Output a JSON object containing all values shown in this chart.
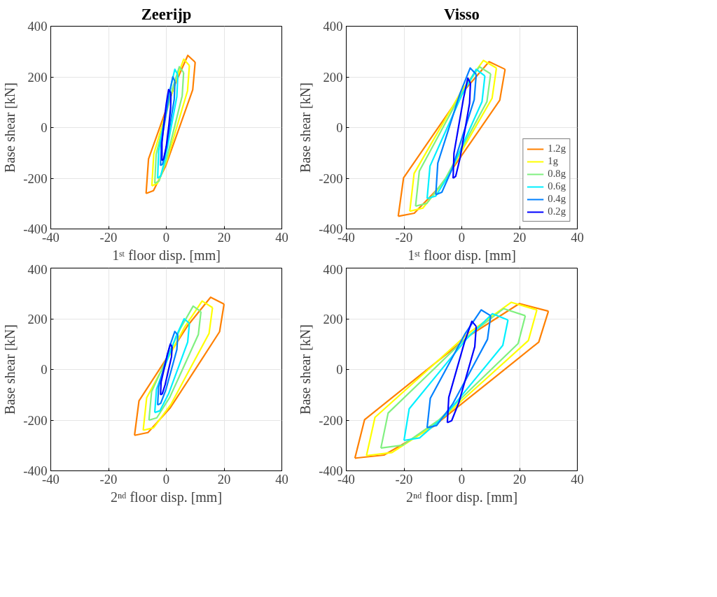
{
  "chart_data": [
    {
      "type": "line",
      "title": "Zeerijp",
      "xlabel": "1ˢᵗ floor disp. [mm]",
      "ylabel": "Base shear [kN]",
      "xlim": [
        -40,
        40
      ],
      "ylim": [
        -400,
        400
      ],
      "xticks": [
        -40,
        -20,
        0,
        20,
        40
      ],
      "yticks": [
        -400,
        -200,
        0,
        200,
        400
      ],
      "grid": true,
      "series": [
        {
          "color": "#ff8000",
          "x": [
            -7,
            -6.15,
            -1.9,
            3.2,
            7.45,
            10
          ],
          "values": [
            -260,
            -124,
            12,
            176,
            285,
            258
          ]
        },
        {
          "color": "#ff8000",
          "x": [
            10,
            9.15,
            4.9,
            -0.2,
            -4.45,
            -7
          ],
          "values": [
            258,
            149,
            12,
            -151,
            -249,
            -260
          ]
        },
        {
          "color": "#ffff00",
          "x": [
            -5,
            -4.35,
            -1.1,
            2.8,
            6.05,
            8
          ],
          "values": [
            -230,
            -105,
            20,
            170,
            270,
            245
          ]
        },
        {
          "color": "#ffff00",
          "x": [
            8,
            7.35,
            4.1,
            0.2,
            -3.05,
            -5
          ],
          "values": [
            245,
            145,
            20,
            -130,
            -220,
            -230
          ]
        },
        {
          "color": "#80f080",
          "x": [
            -4,
            -3.5,
            -1,
            2,
            4.5,
            6
          ],
          "values": [
            -220,
            -105,
            10,
            148,
            240,
            217
          ]
        },
        {
          "color": "#80f080",
          "x": [
            6,
            5.5,
            3,
            0,
            -2.5,
            -4
          ],
          "values": [
            217,
            125,
            10,
            -128,
            -211,
            -220
          ]
        },
        {
          "color": "#00f0ff",
          "x": [
            -3,
            -2.65,
            -0.9,
            1.2,
            2.95,
            4
          ],
          "values": [
            -200,
            -92,
            15,
            144,
            230,
            208
          ]
        },
        {
          "color": "#00f0ff",
          "x": [
            4,
            3.65,
            1.9,
            -0.2,
            -1.95,
            -3
          ],
          "values": [
            208,
            122,
            15,
            -114,
            -191,
            -200
          ]
        },
        {
          "color": "#0080ff",
          "x": [
            -2,
            -1.75,
            -0.5,
            1,
            2.25,
            3
          ],
          "values": [
            -150,
            -62,
            25,
            130,
            200,
            182
          ]
        },
        {
          "color": "#0080ff",
          "x": [
            3,
            2.75,
            1.5,
            0,
            -1.25,
            -2
          ],
          "values": [
            182,
            112,
            25,
            -80,
            -143,
            -150
          ]
        },
        {
          "color": "#0000ff",
          "x": [
            -1.5,
            -1.5,
            -0.9,
            0,
            0.8,
            1.6
          ],
          "values": [
            -130,
            -60,
            10,
            94,
            150,
            136
          ]
        },
        {
          "color": "#0000ff",
          "x": [
            1.6,
            1.5,
            0.9,
            0,
            -0.9,
            -1.5
          ],
          "values": [
            136,
            80,
            10,
            -74,
            -124,
            -130
          ]
        }
      ]
    },
    {
      "type": "line",
      "title": "Visso",
      "xlabel": "1ˢᵗ floor disp. [mm]",
      "ylabel": "Base shear [kN]",
      "xlim": [
        -40,
        40
      ],
      "ylim": [
        -400,
        400
      ],
      "xticks": [
        -40,
        -20,
        0,
        20,
        40
      ],
      "yticks": [
        -400,
        -200,
        0,
        200,
        400
      ],
      "grid": true,
      "legend": "bottom right",
      "series": [
        {
          "name": "1.2g",
          "color": "#ff8000",
          "x": [
            -22,
            -20.15,
            -10.9,
            0.2,
            9.45,
            15
          ],
          "values": [
            -350,
            -198,
            -45,
            138,
            260,
            230
          ]
        },
        {
          "color": "#ff8000",
          "x": [
            15,
            13.15,
            3.9,
            -7.2,
            -16.45,
            -22
          ],
          "values": [
            230,
            108,
            -45,
            -228,
            -338,
            -350
          ]
        },
        {
          "name": "1g",
          "color": "#ffff00",
          "x": [
            -18,
            -16.5,
            -9,
            0,
            7.5,
            12
          ],
          "values": [
            -330,
            -181,
            -32,
            146,
            265,
            235
          ]
        },
        {
          "color": "#ffff00",
          "x": [
            12,
            10.5,
            3,
            -6,
            -13.5,
            -18
          ],
          "values": [
            235,
            116,
            -32,
            -211,
            -318,
            -330
          ]
        },
        {
          "name": "0.8g",
          "color": "#80f080",
          "x": [
            -16,
            -14.7,
            -8.2,
            -0.4,
            6.1,
            10
          ],
          "values": [
            -310,
            -172,
            -35,
            130,
            240,
            212
          ]
        },
        {
          "color": "#80f080",
          "x": [
            10,
            8.7,
            2.2,
            -5.6,
            -12.1,
            -16
          ],
          "values": [
            212,
            102,
            -35,
            -200,
            -299,
            -310
          ]
        },
        {
          "name": "0.6g",
          "color": "#00f0ff",
          "x": [
            -12,
            -11,
            -6,
            0,
            5,
            8
          ],
          "values": [
            -280,
            -152,
            -25,
            128,
            230,
            204
          ]
        },
        {
          "color": "#00f0ff",
          "x": [
            8,
            7,
            2,
            -4,
            -9,
            -12
          ],
          "values": [
            204,
            102,
            -25,
            -178,
            -270,
            -280
          ]
        },
        {
          "name": "0.4g",
          "color": "#0080ff",
          "x": [
            -9,
            -8.3,
            -4.8,
            -0.6,
            2.9,
            5
          ],
          "values": [
            -265,
            -140,
            -15,
            135,
            235,
            210
          ]
        },
        {
          "color": "#0080ff",
          "x": [
            5,
            4.3,
            0.8,
            -3.4,
            -6.9,
            -9
          ],
          "values": [
            210,
            110,
            -15,
            -165,
            -255,
            -265
          ]
        },
        {
          "name": "0.2g",
          "color": "#0000ff",
          "x": [
            -3,
            -2.7,
            -1.2,
            0.6,
            2.1,
            3
          ],
          "values": [
            -200,
            -101,
            -2,
            116,
            195,
            175
          ]
        },
        {
          "color": "#0000ff",
          "x": [
            3,
            2.7,
            1.2,
            -0.6,
            -2.1,
            -3
          ],
          "values": [
            175,
            96,
            -2,
            -121,
            -192,
            -200
          ]
        }
      ]
    },
    {
      "type": "line",
      "xlabel": "2ⁿᵈ floor disp. [mm]",
      "ylabel": "Base shear [kN]",
      "xlim": [
        -40,
        40
      ],
      "ylim": [
        -400,
        400
      ],
      "xticks": [
        -40,
        -20,
        0,
        20,
        40
      ],
      "yticks": [
        -400,
        -200,
        0,
        200,
        400
      ],
      "grid": true,
      "series": [
        {
          "color": "#ff8000",
          "x": [
            -11,
            -9.45,
            -1.7,
            7.6,
            15.35,
            20
          ],
          "values": [
            -260,
            -124,
            12,
            176,
            285,
            258
          ]
        },
        {
          "color": "#ff8000",
          "x": [
            20,
            18.45,
            10.7,
            1.4,
            -6.35,
            -11
          ],
          "values": [
            258,
            149,
            12,
            -151,
            -249,
            -260
          ]
        },
        {
          "color": "#ffff00",
          "x": [
            -8,
            -6.8,
            -0.8,
            6.4,
            12.4,
            16
          ],
          "values": [
            -240,
            -112,
            15,
            168,
            270,
            244
          ]
        },
        {
          "color": "#ffff00",
          "x": [
            16,
            14.8,
            8.8,
            1.6,
            -4.4,
            -8
          ],
          "values": [
            244,
            142,
            15,
            -138,
            -230,
            -240
          ]
        },
        {
          "color": "#80f080",
          "x": [
            -6,
            -5.1,
            -0.6,
            4.8,
            9.3,
            12
          ],
          "values": [
            -200,
            -88,
            25,
            160,
            250,
            228
          ]
        },
        {
          "color": "#80f080",
          "x": [
            12,
            11.1,
            6.6,
            1.2,
            -3.3,
            -6
          ],
          "values": [
            228,
            138,
            25,
            -110,
            -191,
            -200
          ]
        },
        {
          "color": "#00f0ff",
          "x": [
            -4,
            -3.4,
            -0.4,
            3.2,
            6.2,
            8
          ],
          "values": [
            -170,
            -78,
            15,
            126,
            200,
            182
          ]
        },
        {
          "color": "#00f0ff",
          "x": [
            8,
            7.4,
            4.4,
            0.8,
            -2.2,
            -4
          ],
          "values": [
            182,
            108,
            15,
            -96,
            -163,
            -170
          ]
        },
        {
          "color": "#0080ff",
          "x": [
            -3,
            -2.65,
            -0.9,
            1.2,
            2.95,
            4
          ],
          "values": [
            -140,
            -68,
            5,
            92,
            150,
            136
          ]
        },
        {
          "color": "#0080ff",
          "x": [
            4,
            3.65,
            1.9,
            -0.2,
            -1.95,
            -3
          ],
          "values": [
            136,
            78,
            5,
            -82,
            -134,
            -140
          ]
        },
        {
          "color": "#0000ff",
          "x": [
            -2,
            -1.8,
            -0.8,
            0.4,
            1.4,
            2
          ],
          "values": [
            -100,
            -50,
            0,
            60,
            100,
            90
          ]
        },
        {
          "color": "#0000ff",
          "x": [
            2,
            1.8,
            0.8,
            -0.4,
            -1.4,
            -2
          ],
          "values": [
            90,
            50,
            0,
            -60,
            -96,
            -100
          ]
        }
      ]
    },
    {
      "type": "line",
      "xlabel": "2ⁿᵈ floor disp. [mm]",
      "ylabel": "Base shear [kN]",
      "xlim": [
        -40,
        40
      ],
      "ylim": [
        -400,
        400
      ],
      "xticks": [
        -40,
        -20,
        0,
        20,
        40
      ],
      "yticks": [
        -400,
        -200,
        0,
        200,
        400
      ],
      "grid": true,
      "series": [
        {
          "color": "#ff8000",
          "x": [
            -37,
            -33.65,
            -16.9,
            3.2,
            19.95,
            30
          ],
          "values": [
            -350,
            -198,
            -45,
            138,
            260,
            230
          ]
        },
        {
          "color": "#ff8000",
          "x": [
            30,
            26.65,
            9.9,
            -10.2,
            -26.95,
            -37
          ],
          "values": [
            230,
            108,
            -45,
            -228,
            -338,
            -350
          ]
        },
        {
          "color": "#ffff00",
          "x": [
            -33,
            -30.05,
            -15.3,
            2.4,
            17.15,
            26
          ],
          "values": [
            -340,
            -189,
            -38,
            144,
            265,
            235
          ]
        },
        {
          "color": "#ffff00",
          "x": [
            26,
            23.05,
            8.3,
            -9.4,
            -24.15,
            -33
          ],
          "values": [
            235,
            114,
            -38,
            -219,
            -328,
            -340
          ]
        },
        {
          "color": "#80f080",
          "x": [
            -28,
            -25.5,
            -13,
            2,
            14.5,
            22
          ],
          "values": [
            -310,
            -172,
            -35,
            130,
            240,
            212
          ]
        },
        {
          "color": "#80f080",
          "x": [
            22,
            19.5,
            7,
            -8,
            -20.5,
            -28
          ],
          "values": [
            212,
            102,
            -35,
            -200,
            -299,
            -310
          ]
        },
        {
          "color": "#00f0ff",
          "x": [
            -20,
            -18.2,
            -9.2,
            1.6,
            10.6,
            16
          ],
          "values": [
            -280,
            -155,
            -30,
            120,
            220,
            195
          ]
        },
        {
          "color": "#00f0ff",
          "x": [
            16,
            14.2,
            5.2,
            -5.6,
            -14.6,
            -20
          ],
          "values": [
            195,
            95,
            -30,
            -180,
            -270,
            -280
          ]
        },
        {
          "color": "#0080ff",
          "x": [
            -12,
            -10.9,
            -5.4,
            1.2,
            6.7,
            10
          ],
          "values": [
            -230,
            -114,
            2,
            142,
            235,
            212
          ]
        },
        {
          "color": "#0080ff",
          "x": [
            10,
            8.9,
            3.4,
            -3.2,
            -8.7,
            -12
          ],
          "values": [
            212,
            119,
            2,
            -137,
            -221,
            -230
          ]
        },
        {
          "color": "#0000ff",
          "x": [
            -5,
            -4.5,
            -2,
            1,
            3.5,
            5
          ],
          "values": [
            -210,
            -110,
            -10,
            110,
            190,
            170
          ]
        },
        {
          "color": "#0000ff",
          "x": [
            5,
            4.5,
            2,
            -1,
            -3.5,
            -5
          ],
          "values": [
            170,
            90,
            -10,
            -130,
            -202,
            -210
          ]
        }
      ]
    }
  ]
}
